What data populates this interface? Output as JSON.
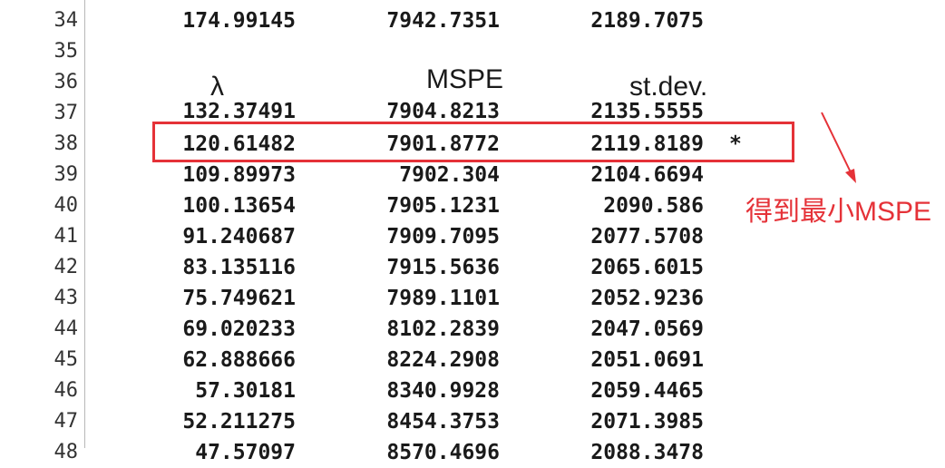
{
  "editor": {
    "line_numbers": [
      "34",
      "35",
      "36",
      "37",
      "38",
      "39",
      "40",
      "41",
      "42",
      "43",
      "44",
      "45",
      "46",
      "47",
      "48"
    ],
    "headers": {
      "lambda": "λ",
      "mspe": "MSPE",
      "stdev": "st.dev."
    },
    "row_34": {
      "lambda": "174.99145",
      "mspe": "7942.7351",
      "stdev": "2189.7075"
    },
    "row_37_partial": {
      "lambda": "132.37491",
      "mspe": "7904.8213",
      "stdev": "2135.5555"
    },
    "rows": [
      {
        "line": "38",
        "lambda": "120.61482",
        "mspe": "7901.8772",
        "stdev": "2119.8189",
        "marker": "*"
      },
      {
        "line": "39",
        "lambda": "109.89973",
        "mspe": "7902.304",
        "stdev": "2104.6694",
        "marker": ""
      },
      {
        "line": "40",
        "lambda": "100.13654",
        "mspe": "7905.1231",
        "stdev": "2090.586",
        "marker": ""
      },
      {
        "line": "41",
        "lambda": "91.240687",
        "mspe": "7909.7095",
        "stdev": "2077.5708",
        "marker": ""
      },
      {
        "line": "42",
        "lambda": "83.135116",
        "mspe": "7915.5636",
        "stdev": "2065.6015",
        "marker": ""
      },
      {
        "line": "43",
        "lambda": "75.749621",
        "mspe": "7989.1101",
        "stdev": "2052.9236",
        "marker": ""
      },
      {
        "line": "44",
        "lambda": "69.020233",
        "mspe": "8102.2839",
        "stdev": "2047.0569",
        "marker": ""
      },
      {
        "line": "45",
        "lambda": "62.888666",
        "mspe": "8224.2908",
        "stdev": "2051.0691",
        "marker": ""
      },
      {
        "line": "46",
        "lambda": "57.30181",
        "mspe": "8340.9928",
        "stdev": "2059.4465",
        "marker": ""
      },
      {
        "line": "47",
        "lambda": "52.211275",
        "mspe": "8454.3753",
        "stdev": "2071.3985",
        "marker": ""
      }
    ],
    "row_48_partial": {
      "lambda": "47.57097",
      "mspe": "8570.4696",
      "stdev": "2088.3478"
    }
  },
  "annotation": {
    "text": "得到最小MSPE",
    "color": "#e53238"
  },
  "colors": {
    "highlight": "#e53238",
    "text": "#1a1a1a",
    "gutter_line": "#b8b8b8"
  }
}
